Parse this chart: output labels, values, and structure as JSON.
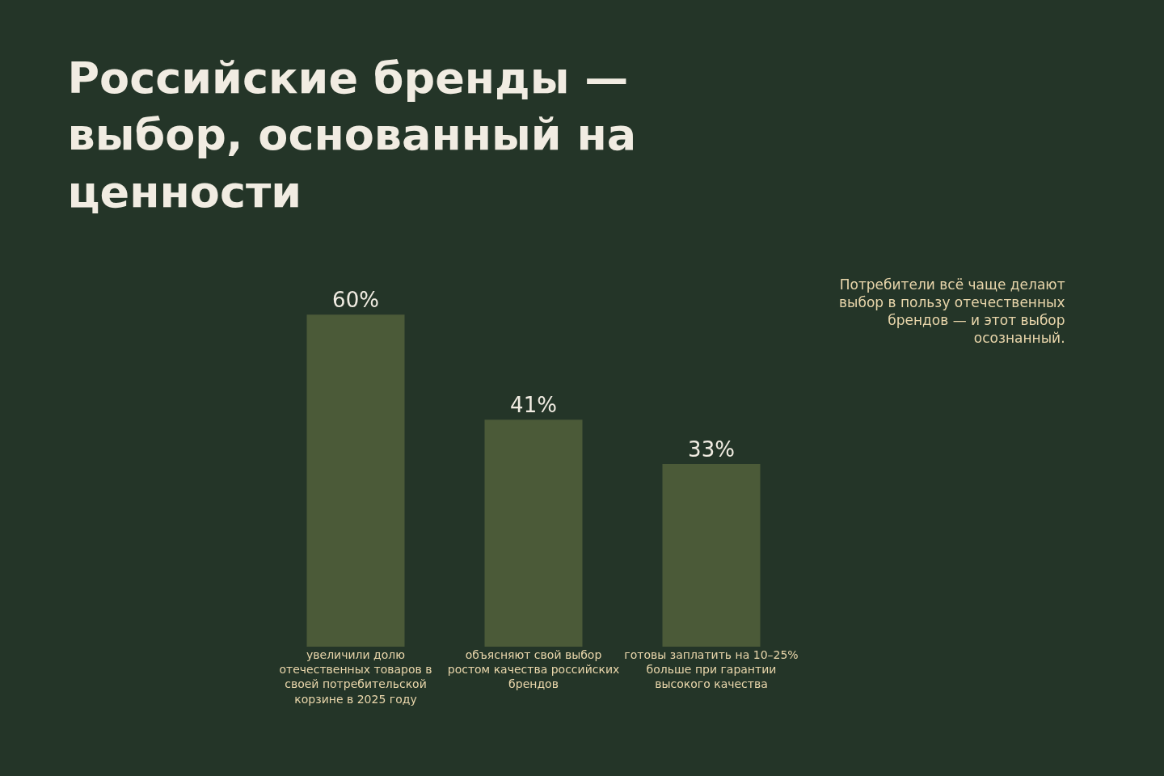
{
  "chart_data": {
    "type": "bar",
    "title": "Российские бренды — выбор, основанный на ценности",
    "categories": [
      "увеличили долю отечественных товаров в своей потребительской корзине в 2025 году",
      "объясняют свой выбор ростом качества российских брендов",
      "готовы заплатить на 10–25% больше при гарантии высокого качества"
    ],
    "values": [
      60,
      41,
      33
    ],
    "color": "#4b5a38",
    "value_labels": [
      "60%",
      "41%",
      "33%"
    ],
    "annotations": [
      "Потребители всё чаще делают выбор в пользу отечественных брендов — и этот выбор осознанный."
    ]
  }
}
